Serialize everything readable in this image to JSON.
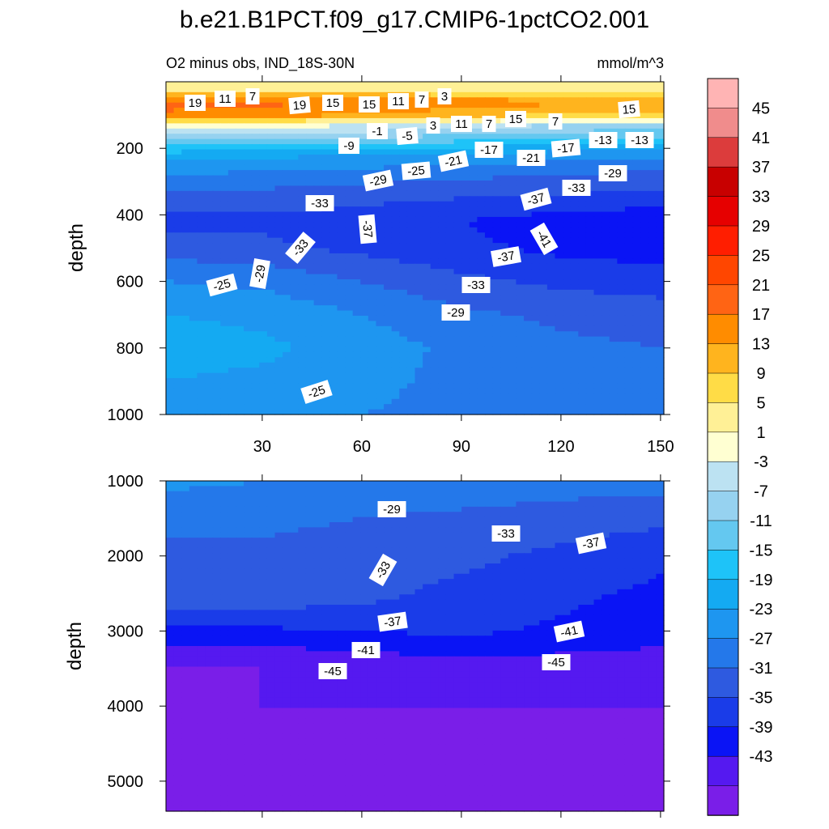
{
  "title": "b.e21.B1PCT.f09_g17.CMIP6-1pctCO2.001",
  "colormap": [
    {
      "value": -47,
      "color": "#7a1ee8"
    },
    {
      "value": -43,
      "color": "#5519f0"
    },
    {
      "value": -39,
      "color": "#0a14f5"
    },
    {
      "value": -35,
      "color": "#1a3ce8"
    },
    {
      "value": -31,
      "color": "#2e5ae0"
    },
    {
      "value": -27,
      "color": "#2478ea"
    },
    {
      "value": -23,
      "color": "#1e96f0"
    },
    {
      "value": -19,
      "color": "#14aaf2"
    },
    {
      "value": -15,
      "color": "#1ec3f8"
    },
    {
      "value": -11,
      "color": "#64c8f0"
    },
    {
      "value": -7,
      "color": "#96d2f0"
    },
    {
      "value": -3,
      "color": "#bce2f2"
    },
    {
      "value": 1,
      "color": "#ffffd2"
    },
    {
      "value": 5,
      "color": "#fff096"
    },
    {
      "value": 9,
      "color": "#ffdc46"
    },
    {
      "value": 13,
      "color": "#ffb41e"
    },
    {
      "value": 17,
      "color": "#ff8c00"
    },
    {
      "value": 21,
      "color": "#ff6414"
    },
    {
      "value": 25,
      "color": "#ff4600"
    },
    {
      "value": 29,
      "color": "#ff1e00"
    },
    {
      "value": 33,
      "color": "#e60000"
    },
    {
      "value": 37,
      "color": "#c80000"
    },
    {
      "value": 41,
      "color": "#dc3c3c"
    },
    {
      "value": 45,
      "color": "#f08c8c"
    },
    {
      "value": 49,
      "color": "#ffb4b4"
    }
  ],
  "chart_data": [
    {
      "type": "heatmap",
      "subtitle_left": "O2 minus obs, IND_18S-30N",
      "subtitle_right": "mmol/m^3",
      "ylabel": "depth",
      "xlim": [
        1,
        151
      ],
      "ylim": [
        1000,
        0
      ],
      "xticks": [
        30,
        60,
        90,
        120,
        150
      ],
      "yticks": [
        200,
        400,
        600,
        800,
        1000
      ],
      "x": [
        1,
        30,
        60,
        90,
        120,
        151
      ],
      "depth": [
        20,
        60,
        100,
        130,
        170,
        220,
        280,
        350,
        420,
        500,
        600,
        700,
        800,
        900,
        1000
      ],
      "values": [
        [
          3,
          3,
          3,
          3,
          3,
          3
        ],
        [
          19,
          18,
          17,
          15,
          14,
          13
        ],
        [
          16,
          15,
          13,
          11,
          9,
          7
        ],
        [
          0,
          -1,
          -3,
          -5,
          -7,
          -9
        ],
        [
          -9,
          -10,
          -11,
          -13,
          -15,
          -15
        ],
        [
          -21,
          -22,
          -23,
          -24,
          -25,
          -26
        ],
        [
          -27,
          -28,
          -29,
          -30,
          -31,
          -32
        ],
        [
          -33,
          -33,
          -34,
          -35,
          -36,
          -37
        ],
        [
          -36,
          -36,
          -37,
          -39,
          -41,
          -42
        ],
        [
          -33,
          -34,
          -36,
          -38,
          -40,
          -41
        ],
        [
          -27,
          -28,
          -31,
          -34,
          -36,
          -37
        ],
        [
          -23,
          -24,
          -27,
          -30,
          -32,
          -33
        ],
        [
          -21,
          -22,
          -25,
          -28,
          -30,
          -31
        ],
        [
          -23,
          -24,
          -26,
          -28,
          -29,
          -30
        ],
        [
          -25,
          -25,
          -27,
          -28,
          -29,
          -29
        ]
      ],
      "contour_labels": [
        "19",
        "11",
        "7",
        "19",
        "15",
        "15",
        "11",
        "7",
        "3",
        "15",
        "-1",
        "-5",
        "3",
        "11",
        "7",
        "15",
        "7",
        "-9",
        "-13",
        "-13",
        "-21",
        "-17",
        "-21",
        "-17",
        "-29",
        "-25",
        "-29",
        "-33",
        "-33",
        "-37",
        "-37",
        "-41",
        "-33",
        "-37",
        "-29",
        "-25",
        "-33",
        "-29",
        "-25"
      ]
    },
    {
      "type": "heatmap",
      "ylabel": "depth",
      "xlim": [
        1,
        151
      ],
      "ylim": [
        5400,
        1000
      ],
      "xticks": [
        30,
        60,
        90,
        120,
        150
      ],
      "yticks": [
        1000,
        2000,
        3000,
        4000,
        5000
      ],
      "x": [
        1,
        30,
        60,
        90,
        120,
        151
      ],
      "depth": [
        1000,
        1500,
        2000,
        2500,
        2800,
        3000,
        3200,
        3500,
        4000,
        5400
      ],
      "values": [
        [
          -26,
          -27,
          -28,
          -28,
          -29,
          -29
        ],
        [
          -30,
          -30,
          -31,
          -32,
          -33,
          -34
        ],
        [
          -32,
          -32,
          -33,
          -34,
          -36,
          -38
        ],
        [
          -33,
          -33,
          -34,
          -36,
          -38,
          -40
        ],
        [
          -36,
          -36,
          -36,
          -37,
          -39,
          -41
        ],
        [
          -40,
          -40,
          -39,
          -38,
          -40,
          -42
        ],
        [
          -43,
          -43,
          -42,
          -41,
          -42,
          -43
        ],
        [
          -47,
          -47,
          -46,
          -45,
          -45,
          -45
        ],
        [
          -47,
          -47,
          -47,
          -47,
          -47,
          -47
        ],
        [
          -47,
          -47,
          -47,
          -47,
          -47,
          -47
        ]
      ],
      "contour_labels": [
        "-29",
        "-33",
        "-37",
        "-33",
        "-37",
        "-41",
        "-41",
        "-45",
        "-45"
      ]
    }
  ],
  "colorbar": {
    "tick_labels": [
      "45",
      "41",
      "37",
      "33",
      "29",
      "25",
      "21",
      "17",
      "13",
      "9",
      "5",
      "1",
      "-3",
      "-7",
      "-11",
      "-15",
      "-19",
      "-23",
      "-27",
      "-31",
      "-35",
      "-39",
      "-43"
    ]
  }
}
